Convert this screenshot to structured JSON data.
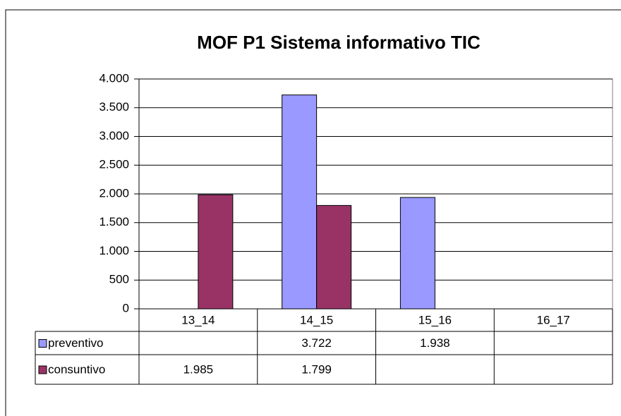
{
  "chart_data": {
    "type": "bar",
    "title": "MOF P1 Sistema informativo TIC",
    "categories": [
      "13_14",
      "14_15",
      "15_16",
      "16_17"
    ],
    "series": [
      {
        "name": "preventivo",
        "color": "#9999ff",
        "values": [
          null,
          3722,
          1938,
          null
        ],
        "value_labels": [
          null,
          "3.722",
          "1.938",
          null
        ]
      },
      {
        "name": "consuntivo",
        "color": "#993366",
        "values": [
          1985,
          1799,
          null,
          null
        ],
        "value_labels": [
          "1.985",
          "1.799",
          null,
          null
        ]
      }
    ],
    "ylim": [
      0,
      4000
    ],
    "yticks": [
      0,
      500,
      {
        "value": 1000,
        "label": "1.000"
      },
      {
        "value": 1500,
        "label": "1.500"
      },
      {
        "value": 2000,
        "label": "2.000"
      },
      {
        "value": 2500,
        "label": "2.500"
      },
      {
        "value": 3000,
        "label": "3.000"
      },
      {
        "value": 3500,
        "label": "3.500"
      },
      {
        "value": 4000,
        "label": "4.000"
      }
    ],
    "grid": true,
    "data_table": true
  }
}
